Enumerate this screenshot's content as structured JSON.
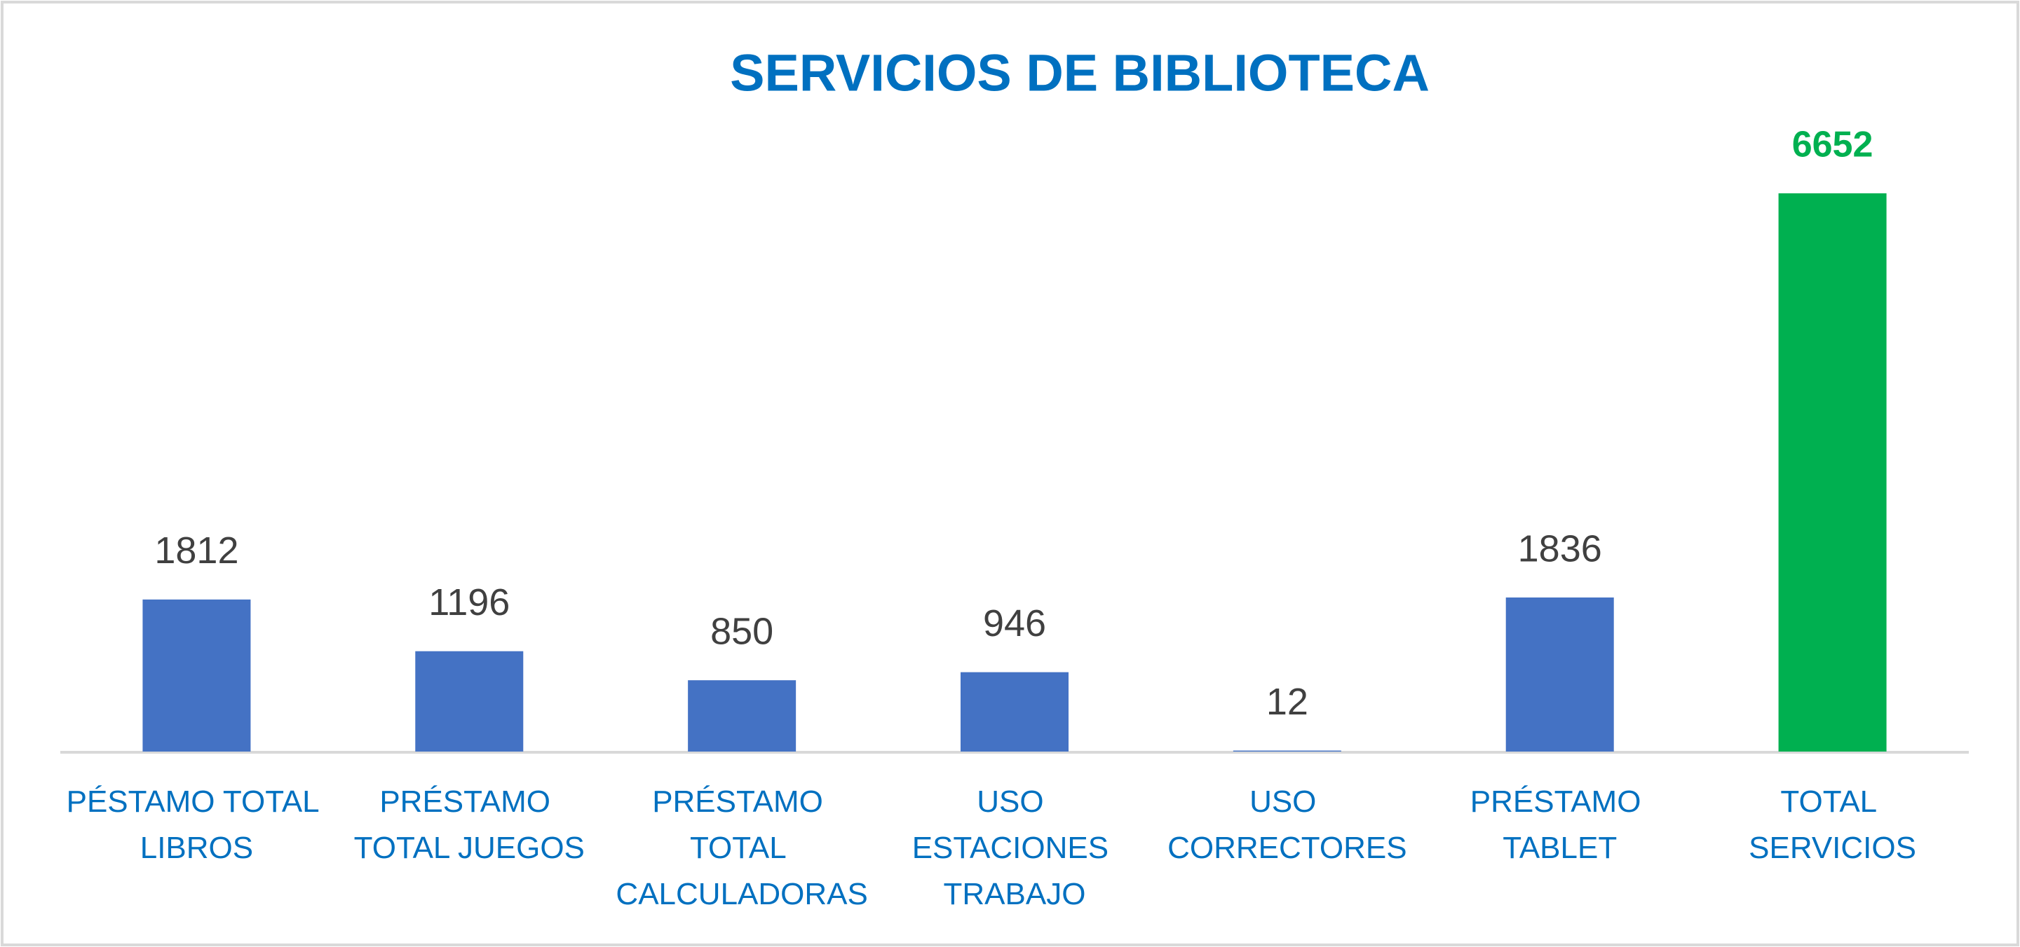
{
  "chart_data": {
    "type": "bar",
    "title": "SERVICIOS DE BIBLIOTECA",
    "categories": [
      "PÉSTAMO TOTAL LIBROS",
      "PRÉSTAMO TOTAL JUEGOS",
      "PRÉSTAMO TOTAL CALCULADORAS",
      "USO ESTACIONES TRABAJO",
      "USO CORRECTORES",
      "PRÉSTAMO TABLET",
      "TOTAL SERVICIOS"
    ],
    "values": [
      1812,
      1196,
      850,
      946,
      12,
      1836,
      6652
    ],
    "colors": [
      "#4472c4",
      "#4472c4",
      "#4472c4",
      "#4472c4",
      "#4472c4",
      "#4472c4",
      "#00b050"
    ]
  }
}
